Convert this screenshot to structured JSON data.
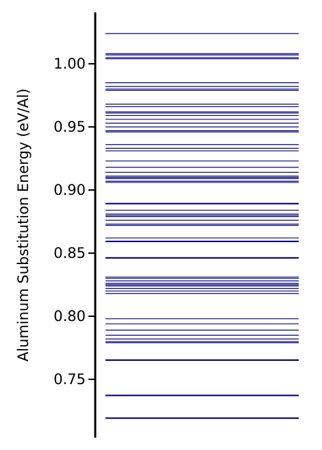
{
  "chart_data": {
    "type": "line",
    "title": "",
    "xlabel": "",
    "ylabel": "Aluminum Substitution Energy (eV/Al)",
    "ylim": [
      0.712,
      1.04
    ],
    "yticks": [
      0.75,
      0.8,
      0.85,
      0.9,
      0.95,
      1.0
    ],
    "ytick_labels": [
      "0.75",
      "0.80",
      "0.85",
      "0.90",
      "0.95",
      "1.00"
    ],
    "grid": false,
    "legend": "none",
    "line_color": "#00007f",
    "values": [
      0.719,
      0.7195,
      0.737,
      0.7375,
      0.765,
      0.7655,
      0.779,
      0.78,
      0.782,
      0.785,
      0.789,
      0.794,
      0.798,
      0.818,
      0.82,
      0.822,
      0.824,
      0.825,
      0.826,
      0.828,
      0.83,
      0.831,
      0.846,
      0.8465,
      0.859,
      0.8595,
      0.862,
      0.872,
      0.873,
      0.876,
      0.879,
      0.88,
      0.881,
      0.884,
      0.889,
      0.8895,
      0.906,
      0.907,
      0.909,
      0.91,
      0.911,
      0.914,
      0.918,
      0.923,
      0.931,
      0.933,
      0.936,
      0.946,
      0.947,
      0.95,
      0.953,
      0.956,
      0.959,
      0.961,
      0.962,
      0.966,
      0.968,
      0.979,
      0.98,
      0.982,
      0.985,
      1.004,
      1.005,
      1.007,
      1.008,
      1.024
    ]
  }
}
